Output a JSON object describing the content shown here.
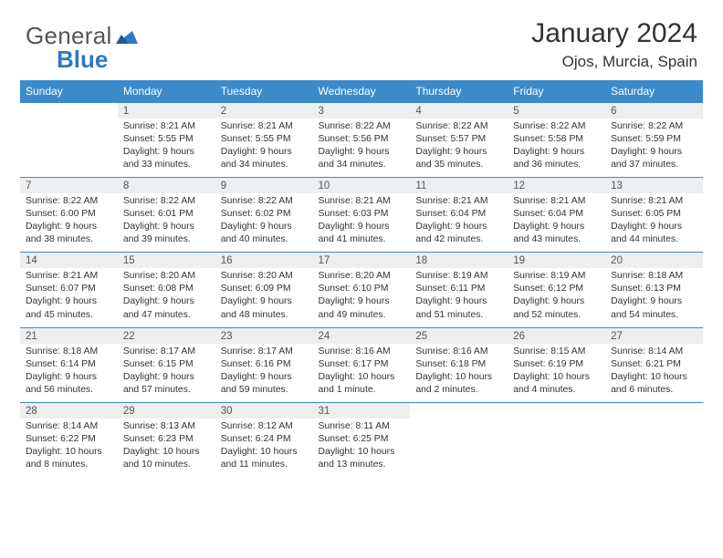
{
  "logo": {
    "text1": "General",
    "text2": "Blue",
    "color1": "#555555",
    "color2": "#2f78c2",
    "tri_color": "#2f78c2"
  },
  "header": {
    "title": "January 2024",
    "location": "Ojos, Murcia, Spain"
  },
  "colors": {
    "header_bg": "#3b8bca",
    "header_fg": "#ffffff",
    "daynum_bg": "#eceeef",
    "border": "#3b8bca",
    "text": "#333333"
  },
  "weekdays": [
    "Sunday",
    "Monday",
    "Tuesday",
    "Wednesday",
    "Thursday",
    "Friday",
    "Saturday"
  ],
  "weeks": [
    [
      {
        "n": "",
        "sunrise": "",
        "sunset": "",
        "daylight": ""
      },
      {
        "n": "1",
        "sunrise": "Sunrise: 8:21 AM",
        "sunset": "Sunset: 5:55 PM",
        "daylight": "Daylight: 9 hours and 33 minutes."
      },
      {
        "n": "2",
        "sunrise": "Sunrise: 8:21 AM",
        "sunset": "Sunset: 5:55 PM",
        "daylight": "Daylight: 9 hours and 34 minutes."
      },
      {
        "n": "3",
        "sunrise": "Sunrise: 8:22 AM",
        "sunset": "Sunset: 5:56 PM",
        "daylight": "Daylight: 9 hours and 34 minutes."
      },
      {
        "n": "4",
        "sunrise": "Sunrise: 8:22 AM",
        "sunset": "Sunset: 5:57 PM",
        "daylight": "Daylight: 9 hours and 35 minutes."
      },
      {
        "n": "5",
        "sunrise": "Sunrise: 8:22 AM",
        "sunset": "Sunset: 5:58 PM",
        "daylight": "Daylight: 9 hours and 36 minutes."
      },
      {
        "n": "6",
        "sunrise": "Sunrise: 8:22 AM",
        "sunset": "Sunset: 5:59 PM",
        "daylight": "Daylight: 9 hours and 37 minutes."
      }
    ],
    [
      {
        "n": "7",
        "sunrise": "Sunrise: 8:22 AM",
        "sunset": "Sunset: 6:00 PM",
        "daylight": "Daylight: 9 hours and 38 minutes."
      },
      {
        "n": "8",
        "sunrise": "Sunrise: 8:22 AM",
        "sunset": "Sunset: 6:01 PM",
        "daylight": "Daylight: 9 hours and 39 minutes."
      },
      {
        "n": "9",
        "sunrise": "Sunrise: 8:22 AM",
        "sunset": "Sunset: 6:02 PM",
        "daylight": "Daylight: 9 hours and 40 minutes."
      },
      {
        "n": "10",
        "sunrise": "Sunrise: 8:21 AM",
        "sunset": "Sunset: 6:03 PM",
        "daylight": "Daylight: 9 hours and 41 minutes."
      },
      {
        "n": "11",
        "sunrise": "Sunrise: 8:21 AM",
        "sunset": "Sunset: 6:04 PM",
        "daylight": "Daylight: 9 hours and 42 minutes."
      },
      {
        "n": "12",
        "sunrise": "Sunrise: 8:21 AM",
        "sunset": "Sunset: 6:04 PM",
        "daylight": "Daylight: 9 hours and 43 minutes."
      },
      {
        "n": "13",
        "sunrise": "Sunrise: 8:21 AM",
        "sunset": "Sunset: 6:05 PM",
        "daylight": "Daylight: 9 hours and 44 minutes."
      }
    ],
    [
      {
        "n": "14",
        "sunrise": "Sunrise: 8:21 AM",
        "sunset": "Sunset: 6:07 PM",
        "daylight": "Daylight: 9 hours and 45 minutes."
      },
      {
        "n": "15",
        "sunrise": "Sunrise: 8:20 AM",
        "sunset": "Sunset: 6:08 PM",
        "daylight": "Daylight: 9 hours and 47 minutes."
      },
      {
        "n": "16",
        "sunrise": "Sunrise: 8:20 AM",
        "sunset": "Sunset: 6:09 PM",
        "daylight": "Daylight: 9 hours and 48 minutes."
      },
      {
        "n": "17",
        "sunrise": "Sunrise: 8:20 AM",
        "sunset": "Sunset: 6:10 PM",
        "daylight": "Daylight: 9 hours and 49 minutes."
      },
      {
        "n": "18",
        "sunrise": "Sunrise: 8:19 AM",
        "sunset": "Sunset: 6:11 PM",
        "daylight": "Daylight: 9 hours and 51 minutes."
      },
      {
        "n": "19",
        "sunrise": "Sunrise: 8:19 AM",
        "sunset": "Sunset: 6:12 PM",
        "daylight": "Daylight: 9 hours and 52 minutes."
      },
      {
        "n": "20",
        "sunrise": "Sunrise: 8:18 AM",
        "sunset": "Sunset: 6:13 PM",
        "daylight": "Daylight: 9 hours and 54 minutes."
      }
    ],
    [
      {
        "n": "21",
        "sunrise": "Sunrise: 8:18 AM",
        "sunset": "Sunset: 6:14 PM",
        "daylight": "Daylight: 9 hours and 56 minutes."
      },
      {
        "n": "22",
        "sunrise": "Sunrise: 8:17 AM",
        "sunset": "Sunset: 6:15 PM",
        "daylight": "Daylight: 9 hours and 57 minutes."
      },
      {
        "n": "23",
        "sunrise": "Sunrise: 8:17 AM",
        "sunset": "Sunset: 6:16 PM",
        "daylight": "Daylight: 9 hours and 59 minutes."
      },
      {
        "n": "24",
        "sunrise": "Sunrise: 8:16 AM",
        "sunset": "Sunset: 6:17 PM",
        "daylight": "Daylight: 10 hours and 1 minute."
      },
      {
        "n": "25",
        "sunrise": "Sunrise: 8:16 AM",
        "sunset": "Sunset: 6:18 PM",
        "daylight": "Daylight: 10 hours and 2 minutes."
      },
      {
        "n": "26",
        "sunrise": "Sunrise: 8:15 AM",
        "sunset": "Sunset: 6:19 PM",
        "daylight": "Daylight: 10 hours and 4 minutes."
      },
      {
        "n": "27",
        "sunrise": "Sunrise: 8:14 AM",
        "sunset": "Sunset: 6:21 PM",
        "daylight": "Daylight: 10 hours and 6 minutes."
      }
    ],
    [
      {
        "n": "28",
        "sunrise": "Sunrise: 8:14 AM",
        "sunset": "Sunset: 6:22 PM",
        "daylight": "Daylight: 10 hours and 8 minutes."
      },
      {
        "n": "29",
        "sunrise": "Sunrise: 8:13 AM",
        "sunset": "Sunset: 6:23 PM",
        "daylight": "Daylight: 10 hours and 10 minutes."
      },
      {
        "n": "30",
        "sunrise": "Sunrise: 8:12 AM",
        "sunset": "Sunset: 6:24 PM",
        "daylight": "Daylight: 10 hours and 11 minutes."
      },
      {
        "n": "31",
        "sunrise": "Sunrise: 8:11 AM",
        "sunset": "Sunset: 6:25 PM",
        "daylight": "Daylight: 10 hours and 13 minutes."
      },
      {
        "n": "",
        "sunrise": "",
        "sunset": "",
        "daylight": ""
      },
      {
        "n": "",
        "sunrise": "",
        "sunset": "",
        "daylight": ""
      },
      {
        "n": "",
        "sunrise": "",
        "sunset": "",
        "daylight": ""
      }
    ]
  ]
}
